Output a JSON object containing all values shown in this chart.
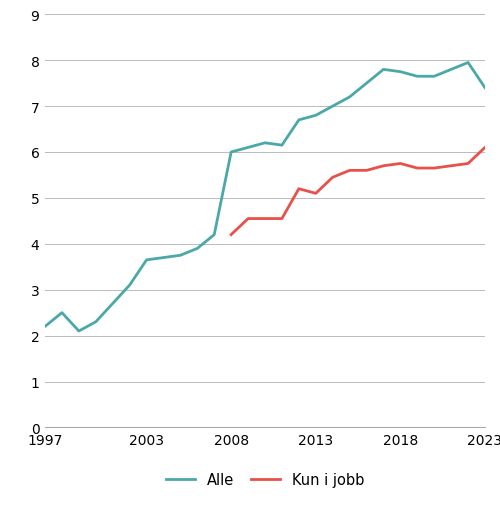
{
  "alle": {
    "years": [
      1997,
      1998,
      1999,
      2000,
      2001,
      2002,
      2003,
      2004,
      2005,
      2006,
      2007,
      2008,
      2009,
      2010,
      2011,
      2012,
      2013,
      2014,
      2015,
      2016,
      2017,
      2018,
      2019,
      2020,
      2021,
      2022,
      2023
    ],
    "values": [
      2.2,
      2.5,
      2.1,
      2.3,
      2.7,
      3.1,
      3.65,
      3.7,
      3.75,
      3.9,
      4.2,
      6.0,
      6.1,
      6.2,
      6.15,
      6.7,
      6.8,
      7.0,
      7.2,
      7.5,
      7.8,
      7.75,
      7.65,
      7.65,
      7.8,
      7.95,
      7.4
    ],
    "color": "#4BA8A8",
    "label": "Alle"
  },
  "kun_i_jobb": {
    "years": [
      2008,
      2009,
      2010,
      2011,
      2012,
      2013,
      2014,
      2015,
      2016,
      2017,
      2018,
      2019,
      2020,
      2021,
      2022,
      2023
    ],
    "values": [
      4.2,
      4.55,
      4.55,
      4.55,
      5.2,
      5.1,
      5.45,
      5.6,
      5.6,
      5.7,
      5.75,
      5.65,
      5.65,
      5.7,
      5.75,
      6.1
    ],
    "color": "#E8504A",
    "label": "Kun i jobb"
  },
  "ylim": [
    0,
    9
  ],
  "yticks": [
    0,
    1,
    2,
    3,
    4,
    5,
    6,
    7,
    8,
    9
  ],
  "xlim": [
    1997,
    2023
  ],
  "xticks": [
    1997,
    2003,
    2008,
    2013,
    2018,
    2023
  ],
  "grid_color": "#bbbbbb",
  "line_width": 2.0,
  "legend_fontsize": 10.5,
  "tick_fontsize": 10,
  "background_color": "#ffffff"
}
